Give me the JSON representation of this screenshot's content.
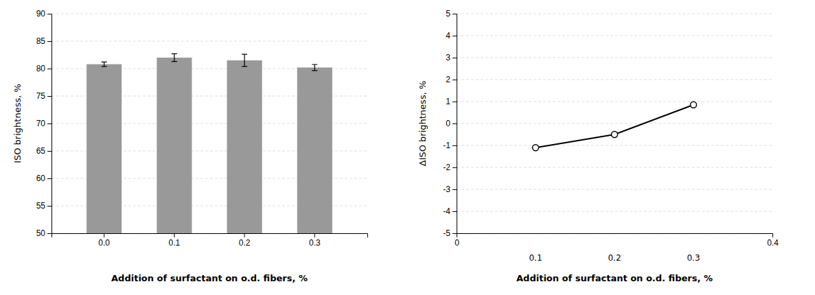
{
  "chart_data": [
    {
      "type": "bar",
      "categories": [
        "0.0",
        "0.1",
        "0.2",
        "0.3"
      ],
      "values": [
        80.8,
        82.0,
        81.5,
        80.2
      ],
      "errors": [
        0.4,
        0.7,
        1.1,
        0.55
      ],
      "color": "#999999",
      "ylabel": "ISO brightness, %",
      "xlabel": "Addition of surfactant on o.d. fibers, %",
      "ylim": [
        50,
        90
      ],
      "yticks": [
        50,
        55,
        60,
        65,
        70,
        75,
        80,
        85,
        90
      ],
      "grid": true
    },
    {
      "type": "line",
      "x": [
        0.1,
        0.2,
        0.3
      ],
      "values": [
        -1.1,
        -0.5,
        0.85
      ],
      "color": "#000000",
      "marker": "circle",
      "ylabel": "ΔISO brightness, %",
      "xlabel": "Addition of surfactant on o.d. fibers, %",
      "ylim": [
        -5,
        5
      ],
      "xlim": [
        0,
        0.4
      ],
      "yticks": [
        -5,
        -4,
        -3,
        -2,
        -1,
        0,
        1,
        2,
        3,
        4,
        5
      ],
      "xticks": [
        0,
        0.4
      ],
      "annotations": [
        {
          "text": "0.1",
          "x": 0.1
        },
        {
          "text": "0.2",
          "x": 0.2
        },
        {
          "text": "0.3",
          "x": 0.3
        }
      ],
      "grid": true
    }
  ]
}
